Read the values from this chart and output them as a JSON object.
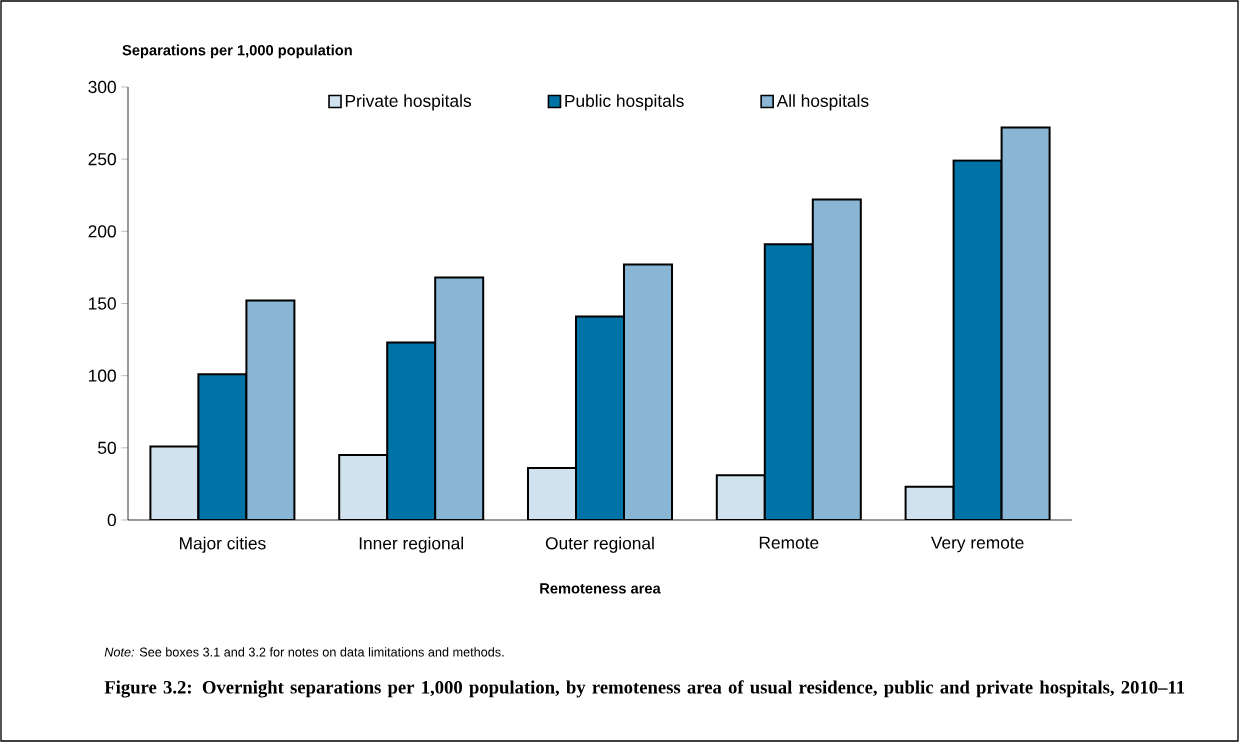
{
  "chart_data": {
    "type": "bar",
    "title": "Figure 3.2: Overnight separations per 1,000 population, by remoteness area of usual residence, public and private hospitals, 2010–11",
    "xlabel": "Remoteness area",
    "ylabel": "Separations per 1,000 population",
    "annotations": [
      "*Note:* See boxes 3.1 and 3.2 for notes on data limitations and methods."
    ],
    "categories": [
      "Major cities",
      "Inner regional",
      "Outer regional",
      "Remote",
      "Very remote"
    ],
    "series": [
      {
        "name": "Private hospitals",
        "color": "#cfe2ed",
        "values": [
          51,
          45,
          36,
          31,
          23
        ]
      },
      {
        "name": "Public hospitals",
        "color": "#0073a6",
        "values": [
          101,
          123,
          141,
          191,
          249
        ]
      },
      {
        "name": "All hospitals",
        "color": "#88b6d4",
        "values": [
          152,
          168,
          177,
          222,
          272
        ]
      }
    ],
    "ylim": [
      0,
      300
    ],
    "yticks": [
      0,
      50,
      100,
      150,
      200,
      250,
      300
    ],
    "legend": "top"
  }
}
